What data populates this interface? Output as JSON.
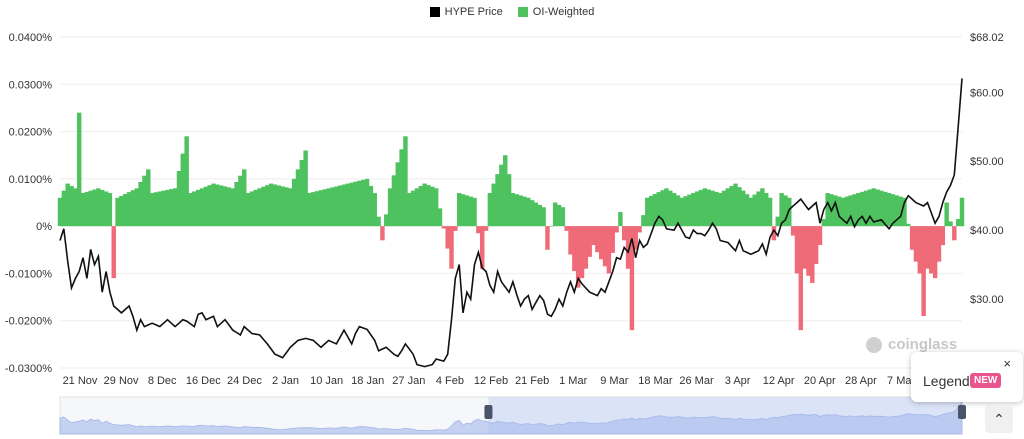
{
  "legend": {
    "price_label": "HYPE Price",
    "price_color": "#000000",
    "oi_label": "OI-Weighted",
    "oi_color": "#4ec25e"
  },
  "colors": {
    "positive": "#4ec25e",
    "negative": "#ef6b78",
    "price": "#111111",
    "navigator": "#b9c8ef"
  },
  "watermark": {
    "text": "coinglass"
  },
  "legend_popup": {
    "label": "Legend",
    "badge": "NEW",
    "close": "×"
  },
  "scroll_button": {
    "icon": "chevron-up-icon",
    "glyph": "⌃"
  },
  "chart_data": {
    "type": "bar+line",
    "x_tick_labels": [
      "21 Nov",
      "29 Nov",
      "8 Dec",
      "16 Dec",
      "24 Dec",
      "2 Jan",
      "10 Jan",
      "18 Jan",
      "27 Jan",
      "4 Feb",
      "12 Feb",
      "21 Feb",
      "1 Mar",
      "9 Mar",
      "18 Mar",
      "26 Mar",
      "3 Apr",
      "12 Apr",
      "20 Apr",
      "28 Apr",
      "7 May"
    ],
    "left_axis": {
      "name": "OI-Weighted",
      "ticks": [
        "0.0400%",
        "0.0300%",
        "0.0200%",
        "0.0100%",
        "0%",
        "-0.0100%",
        "-0.0200%",
        "-0.0300%"
      ],
      "range": [
        -0.03,
        0.04
      ]
    },
    "right_axis": {
      "name": "HYPE Price",
      "ticks": [
        "$68.02",
        "$60.00",
        "$50.00",
        "$40.00",
        "$30.00"
      ],
      "range": [
        20,
        68.02
      ]
    },
    "funding_rate_keypoints": [
      [
        0,
        0.006
      ],
      [
        2,
        0.009
      ],
      [
        4,
        0.008
      ],
      [
        5,
        0.024
      ],
      [
        6,
        0.007
      ],
      [
        10,
        0.008
      ],
      [
        13,
        0.007
      ],
      [
        14,
        -0.011
      ],
      [
        15,
        0.006
      ],
      [
        20,
        0.008
      ],
      [
        23,
        0.012
      ],
      [
        24,
        0.007
      ],
      [
        30,
        0.008
      ],
      [
        33,
        0.019
      ],
      [
        34,
        0.007
      ],
      [
        40,
        0.009
      ],
      [
        45,
        0.008
      ],
      [
        48,
        0.012
      ],
      [
        49,
        0.007
      ],
      [
        55,
        0.009
      ],
      [
        60,
        0.008
      ],
      [
        64,
        0.016
      ],
      [
        65,
        0.007
      ],
      [
        70,
        0.008
      ],
      [
        75,
        0.009
      ],
      [
        80,
        0.01
      ],
      [
        82,
        0.007
      ],
      [
        84,
        -0.003
      ],
      [
        86,
        0.008
      ],
      [
        90,
        0.019
      ],
      [
        91,
        0.007
      ],
      [
        95,
        0.009
      ],
      [
        98,
        0.008
      ],
      [
        102,
        -0.009
      ],
      [
        104,
        0.007
      ],
      [
        108,
        0.006
      ],
      [
        110,
        -0.009
      ],
      [
        112,
        0.007
      ],
      [
        116,
        0.015
      ],
      [
        118,
        0.007
      ],
      [
        122,
        0.006
      ],
      [
        126,
        0.004
      ],
      [
        127,
        -0.005
      ],
      [
        129,
        0.005
      ],
      [
        131,
        0.004
      ],
      [
        133,
        -0.006
      ],
      [
        135,
        -0.013
      ],
      [
        137,
        -0.009
      ],
      [
        139,
        -0.004
      ],
      [
        141,
        -0.007
      ],
      [
        143,
        -0.01
      ],
      [
        146,
        0.003
      ],
      [
        148,
        -0.009
      ],
      [
        149,
        -0.022
      ],
      [
        150,
        -0.005
      ],
      [
        153,
        0.006
      ],
      [
        158,
        0.008
      ],
      [
        162,
        0.006
      ],
      [
        165,
        0.007
      ],
      [
        168,
        0.008
      ],
      [
        172,
        0.007
      ],
      [
        176,
        0.009
      ],
      [
        180,
        0.006
      ],
      [
        183,
        0.008
      ],
      [
        185,
        0.006
      ],
      [
        186,
        -0.003
      ],
      [
        188,
        0.007
      ],
      [
        190,
        0.006
      ],
      [
        192,
        -0.01
      ],
      [
        193,
        -0.022
      ],
      [
        194,
        -0.009
      ],
      [
        196,
        -0.012
      ],
      [
        198,
        -0.004
      ],
      [
        200,
        0.007
      ],
      [
        204,
        0.006
      ],
      [
        208,
        0.007
      ],
      [
        212,
        0.008
      ],
      [
        216,
        0.007
      ],
      [
        220,
        0.006
      ],
      [
        222,
        -0.005
      ],
      [
        224,
        -0.01
      ],
      [
        225,
        -0.019
      ],
      [
        226,
        -0.009
      ],
      [
        228,
        -0.011
      ],
      [
        230,
        -0.004
      ],
      [
        231,
        0.005
      ],
      [
        233,
        -0.003
      ],
      [
        235,
        0.006
      ]
    ],
    "price_keypoints": [
      [
        0,
        38.5
      ],
      [
        1,
        40.2
      ],
      [
        2,
        35.5
      ],
      [
        3,
        31.6
      ],
      [
        4,
        33
      ],
      [
        5,
        34
      ],
      [
        6,
        36
      ],
      [
        7,
        33
      ],
      [
        8,
        37.2
      ],
      [
        9,
        35
      ],
      [
        10,
        36.2
      ],
      [
        11,
        31
      ],
      [
        12,
        34
      ],
      [
        13,
        31
      ],
      [
        14,
        29
      ],
      [
        16,
        28
      ],
      [
        18,
        29
      ],
      [
        19,
        27.5
      ],
      [
        20,
        25.5
      ],
      [
        21,
        27
      ],
      [
        22,
        26
      ],
      [
        24,
        26.5
      ],
      [
        26,
        26
      ],
      [
        28,
        27
      ],
      [
        30,
        26
      ],
      [
        32,
        27
      ],
      [
        33,
        26.8
      ],
      [
        35,
        26
      ],
      [
        36,
        27.8
      ],
      [
        37,
        28
      ],
      [
        38,
        27
      ],
      [
        40,
        27.5
      ],
      [
        41,
        26
      ],
      [
        43,
        27
      ],
      [
        45,
        25.5
      ],
      [
        47,
        24.8
      ],
      [
        48,
        26
      ],
      [
        50,
        25
      ],
      [
        52,
        24.8
      ],
      [
        54,
        23.5
      ],
      [
        56,
        22
      ],
      [
        58,
        21.5
      ],
      [
        60,
        23
      ],
      [
        62,
        24
      ],
      [
        64,
        24.3
      ],
      [
        66,
        24
      ],
      [
        68,
        23
      ],
      [
        70,
        24
      ],
      [
        72,
        23.5
      ],
      [
        74,
        25.5
      ],
      [
        75,
        24.5
      ],
      [
        76,
        23.5
      ],
      [
        77,
        25
      ],
      [
        78,
        26
      ],
      [
        80,
        25.6
      ],
      [
        82,
        24
      ],
      [
        83,
        22.5
      ],
      [
        85,
        23
      ],
      [
        87,
        22
      ],
      [
        88,
        21.7
      ],
      [
        89,
        22.5
      ],
      [
        90,
        23.5
      ],
      [
        92,
        22
      ],
      [
        93,
        20.5
      ],
      [
        95,
        20.2
      ],
      [
        97,
        20.5
      ],
      [
        98,
        21.3
      ],
      [
        100,
        21
      ],
      [
        101,
        22
      ],
      [
        102,
        27
      ],
      [
        103,
        33
      ],
      [
        104,
        35
      ],
      [
        105,
        28
      ],
      [
        106,
        31
      ],
      [
        107,
        30
      ],
      [
        108,
        35
      ],
      [
        109,
        36.8
      ],
      [
        110,
        34.5
      ],
      [
        111,
        34
      ],
      [
        112,
        32
      ],
      [
        113,
        31
      ],
      [
        114,
        34
      ],
      [
        115,
        32.5
      ],
      [
        117,
        31
      ],
      [
        118,
        32.5
      ],
      [
        119,
        30.6
      ],
      [
        120,
        29
      ],
      [
        121,
        30
      ],
      [
        122,
        30.5
      ],
      [
        123,
        28.5
      ],
      [
        125,
        30.5
      ],
      [
        126,
        29.8
      ],
      [
        127,
        27.8
      ],
      [
        128,
        27.5
      ],
      [
        129,
        28.5
      ],
      [
        130,
        30
      ],
      [
        131,
        29
      ],
      [
        132,
        31
      ],
      [
        133,
        32.5
      ],
      [
        134,
        31
      ],
      [
        135,
        33
      ],
      [
        136,
        32.2
      ],
      [
        138,
        31
      ],
      [
        140,
        30.5
      ],
      [
        141,
        31.5
      ],
      [
        142,
        31
      ],
      [
        144,
        34
      ],
      [
        145,
        36
      ],
      [
        146,
        35.8
      ],
      [
        147,
        37.5
      ],
      [
        148,
        36.8
      ],
      [
        149,
        38.8
      ],
      [
        150,
        36
      ],
      [
        151,
        38.5
      ],
      [
        152,
        37.5
      ],
      [
        153,
        38
      ],
      [
        155,
        41
      ],
      [
        156,
        42
      ],
      [
        157,
        41.5
      ],
      [
        158,
        40.2
      ],
      [
        160,
        40
      ],
      [
        161,
        41
      ],
      [
        162,
        40
      ],
      [
        163,
        39
      ],
      [
        164,
        38.8
      ],
      [
        165,
        40
      ],
      [
        166,
        39.5
      ],
      [
        167,
        39.5
      ],
      [
        168,
        39.2
      ],
      [
        169,
        40
      ],
      [
        170,
        41
      ],
      [
        171,
        40.2
      ],
      [
        172,
        38.5
      ],
      [
        174,
        38.2
      ],
      [
        176,
        37
      ],
      [
        177,
        38.5
      ],
      [
        178,
        37
      ],
      [
        180,
        36.5
      ],
      [
        182,
        37
      ],
      [
        183,
        38
      ],
      [
        184,
        36.5
      ],
      [
        185,
        39
      ],
      [
        186,
        40
      ],
      [
        187,
        39.2
      ],
      [
        188,
        41
      ],
      [
        189,
        41.5
      ],
      [
        190,
        43
      ],
      [
        192,
        44
      ],
      [
        193,
        44.5
      ],
      [
        195,
        43
      ],
      [
        197,
        44
      ],
      [
        198,
        41
      ],
      [
        199,
        43
      ],
      [
        200,
        44
      ],
      [
        201,
        42.8
      ],
      [
        202,
        44
      ],
      [
        203,
        42
      ],
      [
        205,
        41
      ],
      [
        206,
        42
      ],
      [
        207,
        40.5
      ],
      [
        208,
        41.5
      ],
      [
        209,
        42
      ],
      [
        210,
        41
      ],
      [
        211,
        42
      ],
      [
        212,
        41.2
      ],
      [
        214,
        41.5
      ],
      [
        216,
        40.2
      ],
      [
        217,
        41
      ],
      [
        218,
        41.5
      ],
      [
        219,
        42
      ],
      [
        220,
        44
      ],
      [
        221,
        45
      ],
      [
        223,
        44
      ],
      [
        225,
        43.5
      ],
      [
        226,
        44
      ],
      [
        227,
        42.5
      ],
      [
        228,
        41
      ],
      [
        229,
        42
      ],
      [
        230,
        44
      ],
      [
        231,
        45.5
      ],
      [
        232,
        46.5
      ],
      [
        233,
        48
      ],
      [
        234,
        55
      ],
      [
        235,
        62
      ]
    ],
    "n_bars": 236,
    "navigator": {
      "selected_range_fraction": [
        0.475,
        1.0
      ]
    }
  }
}
